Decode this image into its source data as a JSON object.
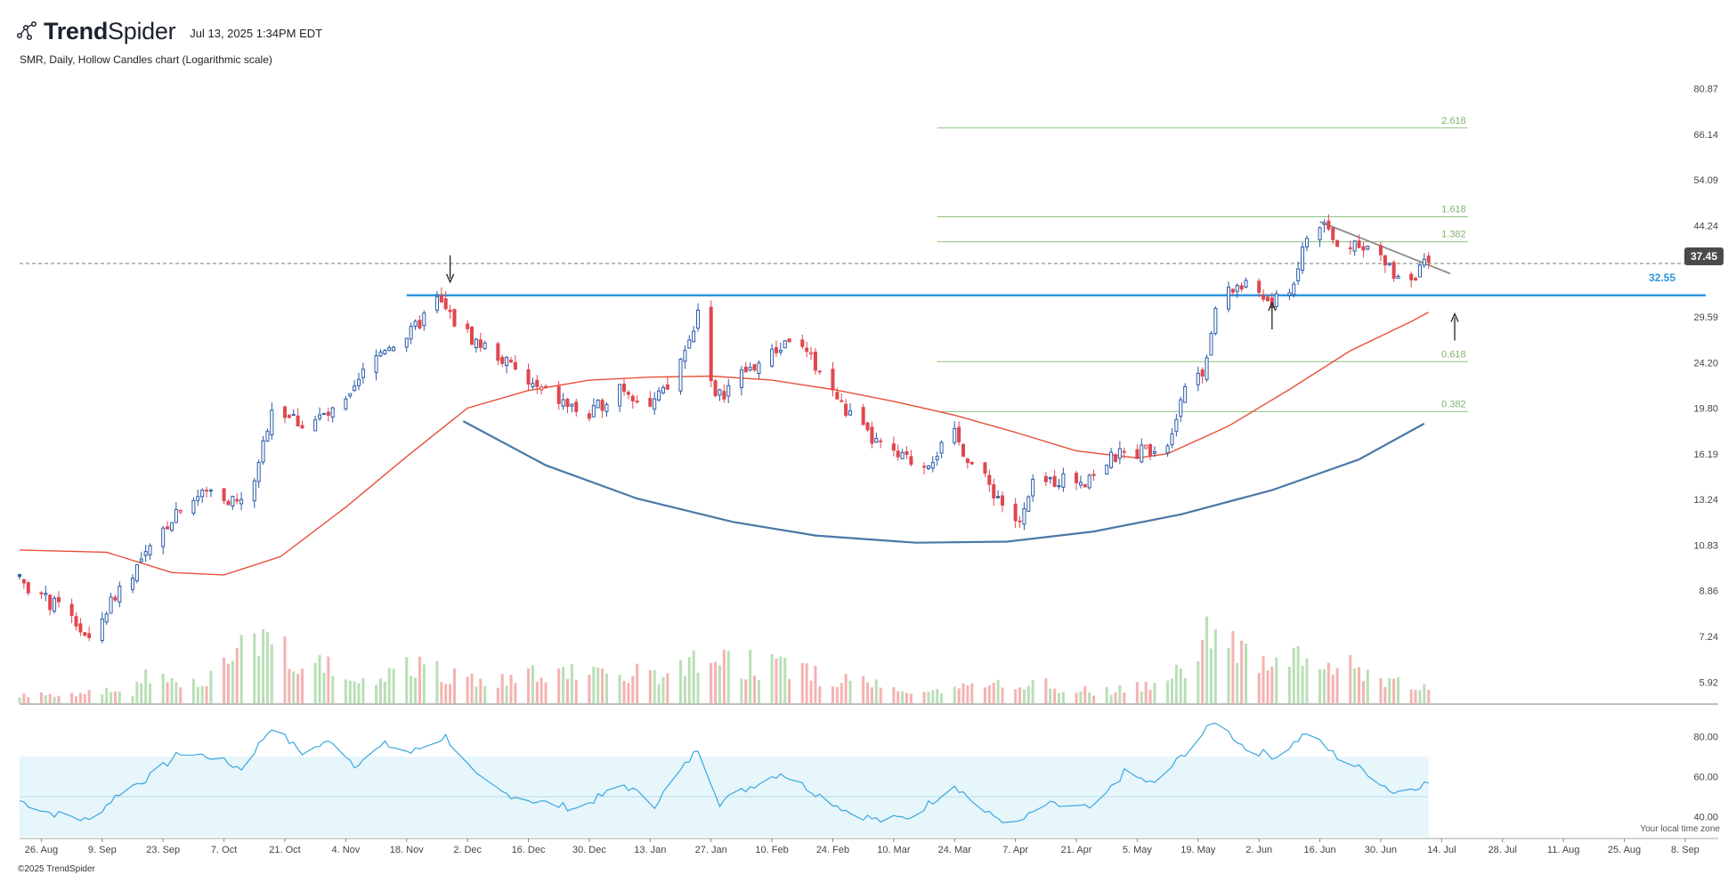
{
  "header": {
    "brand": "TrendSpider",
    "brand_strong": "Trend",
    "brand_light": "Spider",
    "timestamp": "Jul 13, 2025 1:34PM EDT",
    "subtitle": "SMR, Daily, Hollow Candles chart (Logarithmic scale)"
  },
  "footer": {
    "copyright": "©2025 TrendSpider",
    "timezone_note": "Your local time zone"
  },
  "colors": {
    "up": "#2a5aa8",
    "down": "#e0474f",
    "volume_up": "#b9dfb6",
    "volume_down": "#f5b3b0",
    "ma": "#e8503a",
    "support_line": "#2f95de",
    "saucer_curve": "#4a78a8",
    "fib": "#8dc27e",
    "rsi_line": "#3aa7e0",
    "rsi_band": "#e6f6fb"
  },
  "chart_data": {
    "type": "candlestick",
    "ticker": "SMR",
    "interval": "Daily",
    "style": "Hollow Candles",
    "y_scale": "log",
    "ylim": [
      5.4,
      88
    ],
    "y_ticks": [
      80.87,
      66.14,
      54.09,
      44.24,
      36.18,
      29.59,
      24.2,
      19.8,
      16.19,
      13.24,
      10.83,
      8.86,
      7.24,
      5.92
    ],
    "y_tick_labels": [
      "80.87",
      "66.14",
      "54.09",
      "44.24",
      "",
      "29.59",
      "24.20",
      "19.80",
      "16.19",
      "13.24",
      "10.83",
      "8.86",
      "7.24",
      "5.92"
    ],
    "x_ticks": [
      {
        "date": "2024-08-26",
        "label": "26. Aug"
      },
      {
        "date": "2024-09-09",
        "label": "9. Sep"
      },
      {
        "date": "2024-09-23",
        "label": "23. Sep"
      },
      {
        "date": "2024-10-07",
        "label": "7. Oct"
      },
      {
        "date": "2024-10-21",
        "label": "21. Oct"
      },
      {
        "date": "2024-11-04",
        "label": "4. Nov"
      },
      {
        "date": "2024-11-18",
        "label": "18. Nov"
      },
      {
        "date": "2024-12-02",
        "label": "2. Dec"
      },
      {
        "date": "2024-12-16",
        "label": "16. Dec"
      },
      {
        "date": "2024-12-30",
        "label": "30. Dec"
      },
      {
        "date": "2025-01-13",
        "label": "13. Jan"
      },
      {
        "date": "2025-01-27",
        "label": "27. Jan"
      },
      {
        "date": "2025-02-10",
        "label": "10. Feb"
      },
      {
        "date": "2025-02-24",
        "label": "24. Feb"
      },
      {
        "date": "2025-03-10",
        "label": "10. Mar"
      },
      {
        "date": "2025-03-24",
        "label": "24. Mar"
      },
      {
        "date": "2025-04-07",
        "label": "7. Apr"
      },
      {
        "date": "2025-04-21",
        "label": "21. Apr"
      },
      {
        "date": "2025-05-05",
        "label": "5. May"
      },
      {
        "date": "2025-05-19",
        "label": "19. May"
      },
      {
        "date": "2025-06-02",
        "label": "2. Jun"
      },
      {
        "date": "2025-06-16",
        "label": "16. Jun"
      },
      {
        "date": "2025-06-30",
        "label": "30. Jun"
      },
      {
        "date": "2025-07-14",
        "label": "14. Jul"
      },
      {
        "date": "2025-07-28",
        "label": "28. Jul"
      },
      {
        "date": "2025-08-11",
        "label": "11. Aug"
      },
      {
        "date": "2025-08-25",
        "label": "25. Aug"
      },
      {
        "date": "2025-09-08",
        "label": "8. Sep"
      }
    ],
    "x_range": [
      "2024-08-21",
      "2025-09-16"
    ],
    "last_price": 37.45,
    "last_price_label": "37.45",
    "support_level": 32.55,
    "support_level_label": "32.55",
    "support_from": "2024-11-18",
    "price_path": [
      [
        "2024-08-21",
        9.4
      ],
      [
        "2024-08-26",
        8.6
      ],
      [
        "2024-09-02",
        7.9
      ],
      [
        "2024-09-06",
        7.0
      ],
      [
        "2024-09-13",
        9.0
      ],
      [
        "2024-09-20",
        10.5
      ],
      [
        "2024-09-27",
        13.0
      ],
      [
        "2024-10-04",
        13.8
      ],
      [
        "2024-10-11",
        13.0
      ],
      [
        "2024-10-15",
        15.2
      ],
      [
        "2024-10-18",
        20.0
      ],
      [
        "2024-10-25",
        18.5
      ],
      [
        "2024-11-01",
        19.3
      ],
      [
        "2024-11-05",
        20.5
      ],
      [
        "2024-11-08",
        23.0
      ],
      [
        "2024-11-13",
        26.0
      ],
      [
        "2024-11-19",
        27.5
      ],
      [
        "2024-11-25",
        31.8
      ],
      [
        "2024-11-29",
        29.0
      ],
      [
        "2024-12-04",
        26.5
      ],
      [
        "2024-12-09",
        25.0
      ],
      [
        "2024-12-16",
        22.0
      ],
      [
        "2024-12-23",
        20.5
      ],
      [
        "2024-12-30",
        19.0
      ],
      [
        "2025-01-06",
        22.0
      ],
      [
        "2025-01-13",
        20.0
      ],
      [
        "2025-01-17",
        21.5
      ],
      [
        "2025-01-22",
        26.5
      ],
      [
        "2025-01-24",
        30.5
      ],
      [
        "2025-01-28",
        20.5
      ],
      [
        "2025-02-03",
        23.0
      ],
      [
        "2025-02-10",
        25.0
      ],
      [
        "2025-02-14",
        27.0
      ],
      [
        "2025-02-20",
        24.0
      ],
      [
        "2025-02-26",
        20.0
      ],
      [
        "2025-03-04",
        17.5
      ],
      [
        "2025-03-10",
        16.0
      ],
      [
        "2025-03-17",
        15.5
      ],
      [
        "2025-03-24",
        17.5
      ],
      [
        "2025-03-28",
        15.5
      ],
      [
        "2025-04-04",
        13.0
      ],
      [
        "2025-04-08",
        11.8
      ],
      [
        "2025-04-11",
        14.0
      ],
      [
        "2025-04-17",
        14.5
      ],
      [
        "2025-04-23",
        14.5
      ],
      [
        "2025-04-30",
        16.0
      ],
      [
        "2025-05-07",
        16.5
      ],
      [
        "2025-05-12",
        17.0
      ],
      [
        "2025-05-16",
        22.0
      ],
      [
        "2025-05-21",
        24.0
      ],
      [
        "2025-05-23",
        31.0
      ],
      [
        "2025-05-28",
        34.0
      ],
      [
        "2025-06-02",
        33.0
      ],
      [
        "2025-06-05",
        31.0
      ],
      [
        "2025-06-10",
        34.5
      ],
      [
        "2025-06-13",
        42.0
      ],
      [
        "2025-06-17",
        44.5
      ],
      [
        "2025-06-20",
        40.0
      ],
      [
        "2025-06-25",
        41.5
      ],
      [
        "2025-06-30",
        38.0
      ],
      [
        "2025-07-03",
        36.0
      ],
      [
        "2025-07-07",
        35.5
      ],
      [
        "2025-07-11",
        37.45
      ]
    ],
    "moving_average": [
      [
        "2024-08-21",
        10.6
      ],
      [
        "2024-09-10",
        10.5
      ],
      [
        "2024-09-25",
        9.6
      ],
      [
        "2024-10-07",
        9.5
      ],
      [
        "2024-10-20",
        10.3
      ],
      [
        "2024-11-04",
        12.8
      ],
      [
        "2024-11-18",
        16.0
      ],
      [
        "2024-12-02",
        19.8
      ],
      [
        "2024-12-16",
        21.4
      ],
      [
        "2024-12-30",
        22.4
      ],
      [
        "2025-01-13",
        22.7
      ],
      [
        "2025-01-27",
        22.8
      ],
      [
        "2025-02-10",
        22.4
      ],
      [
        "2025-02-24",
        21.5
      ],
      [
        "2025-03-10",
        20.4
      ],
      [
        "2025-03-24",
        19.2
      ],
      [
        "2025-04-07",
        17.8
      ],
      [
        "2025-04-21",
        16.4
      ],
      [
        "2025-05-05",
        15.9
      ],
      [
        "2025-05-12",
        16.2
      ],
      [
        "2025-05-26",
        18.3
      ],
      [
        "2025-06-09",
        21.5
      ],
      [
        "2025-06-23",
        25.5
      ],
      [
        "2025-07-07",
        29.0
      ],
      [
        "2025-07-11",
        30.2
      ]
    ],
    "saucer_curve": [
      [
        "2024-12-01",
        18.7
      ],
      [
        "2024-12-20",
        15.4
      ],
      [
        "2025-01-10",
        13.3
      ],
      [
        "2025-02-01",
        12.0
      ],
      [
        "2025-02-20",
        11.3
      ],
      [
        "2025-03-15",
        10.95
      ],
      [
        "2025-04-05",
        11.0
      ],
      [
        "2025-04-25",
        11.5
      ],
      [
        "2025-05-15",
        12.4
      ],
      [
        "2025-06-05",
        13.8
      ],
      [
        "2025-06-25",
        15.8
      ],
      [
        "2025-07-10",
        18.5
      ]
    ],
    "downtrend_line": [
      [
        "2025-06-16",
        45.0
      ],
      [
        "2025-07-16",
        35.8
      ]
    ],
    "fib_levels": [
      {
        "ratio": "2.618",
        "price": 68.0
      },
      {
        "ratio": "1.618",
        "price": 46.0
      },
      {
        "ratio": "1.382",
        "price": 41.2
      },
      {
        "ratio": "0.618",
        "price": 24.3
      },
      {
        "ratio": "0.382",
        "price": 19.5
      }
    ],
    "fib_x_range": [
      "2025-03-20",
      "2025-07-20"
    ],
    "arrows": [
      {
        "date": "2024-11-28",
        "price": 34.5,
        "direction": "down"
      },
      {
        "date": "2025-06-05",
        "price": 31.5,
        "direction": "up"
      },
      {
        "date": "2025-07-17",
        "price": 30.0,
        "direction": "up"
      }
    ],
    "volume_path": [
      [
        "2024-08-21",
        0.6
      ],
      [
        "2024-09-16",
        1.0
      ],
      [
        "2024-09-18",
        2.7
      ],
      [
        "2024-10-01",
        1.5
      ],
      [
        "2024-10-18",
        6.0
      ],
      [
        "2024-10-25",
        3.5
      ],
      [
        "2024-11-08",
        1.8
      ],
      [
        "2024-11-20",
        3.2
      ],
      [
        "2024-12-02",
        1.9
      ],
      [
        "2024-12-20",
        2.4
      ],
      [
        "2025-01-15",
        2.3
      ],
      [
        "2025-01-24",
        3.8
      ],
      [
        "2025-02-12",
        2.8
      ],
      [
        "2025-03-01",
        1.8
      ],
      [
        "2025-03-20",
        1.0
      ],
      [
        "2025-04-09",
        1.8
      ],
      [
        "2025-04-25",
        0.9
      ],
      [
        "2025-05-09",
        1.4
      ],
      [
        "2025-05-16",
        3.3
      ],
      [
        "2025-05-23",
        7.5
      ],
      [
        "2025-05-30",
        3.5
      ],
      [
        "2025-06-13",
        4.5
      ],
      [
        "2025-06-25",
        2.5
      ],
      [
        "2025-07-11",
        1.5
      ]
    ],
    "volume_ylim": [
      0,
      8
    ],
    "rsi": {
      "ylim": [
        30,
        90
      ],
      "band": [
        30,
        70
      ],
      "midline": 50,
      "ticks": [
        80,
        60,
        40
      ],
      "tick_labels": [
        "80.00",
        "60.00",
        "40.00"
      ],
      "path": [
        [
          "2024-08-21",
          48
        ],
        [
          "2024-08-28",
          42
        ],
        [
          "2024-09-06",
          38
        ],
        [
          "2024-09-13",
          52
        ],
        [
          "2024-09-20",
          60
        ],
        [
          "2024-09-27",
          72
        ],
        [
          "2024-10-04",
          70
        ],
        [
          "2024-10-11",
          64
        ],
        [
          "2024-10-18",
          85
        ],
        [
          "2024-10-25",
          72
        ],
        [
          "2024-11-01",
          78
        ],
        [
          "2024-11-06",
          66
        ],
        [
          "2024-11-13",
          76
        ],
        [
          "2024-11-19",
          72
        ],
        [
          "2024-11-27",
          80
        ],
        [
          "2024-12-04",
          60
        ],
        [
          "2024-12-10",
          52
        ],
        [
          "2024-12-17",
          48
        ],
        [
          "2024-12-27",
          44
        ],
        [
          "2025-01-07",
          56
        ],
        [
          "2025-01-14",
          46
        ],
        [
          "2025-01-24",
          74
        ],
        [
          "2025-01-29",
          47
        ],
        [
          "2025-02-05",
          55
        ],
        [
          "2025-02-12",
          62
        ],
        [
          "2025-02-20",
          52
        ],
        [
          "2025-02-28",
          42
        ],
        [
          "2025-03-07",
          38
        ],
        [
          "2025-03-14",
          40
        ],
        [
          "2025-03-24",
          56
        ],
        [
          "2025-03-31",
          42
        ],
        [
          "2025-04-07",
          36
        ],
        [
          "2025-04-14",
          46
        ],
        [
          "2025-04-25",
          44
        ],
        [
          "2025-05-02",
          62
        ],
        [
          "2025-05-09",
          56
        ],
        [
          "2025-05-16",
          72
        ],
        [
          "2025-05-23",
          88
        ],
        [
          "2025-05-30",
          74
        ],
        [
          "2025-06-06",
          70
        ],
        [
          "2025-06-13",
          82
        ],
        [
          "2025-06-20",
          70
        ],
        [
          "2025-06-27",
          62
        ],
        [
          "2025-07-03",
          52
        ],
        [
          "2025-07-11",
          57
        ]
      ]
    }
  }
}
